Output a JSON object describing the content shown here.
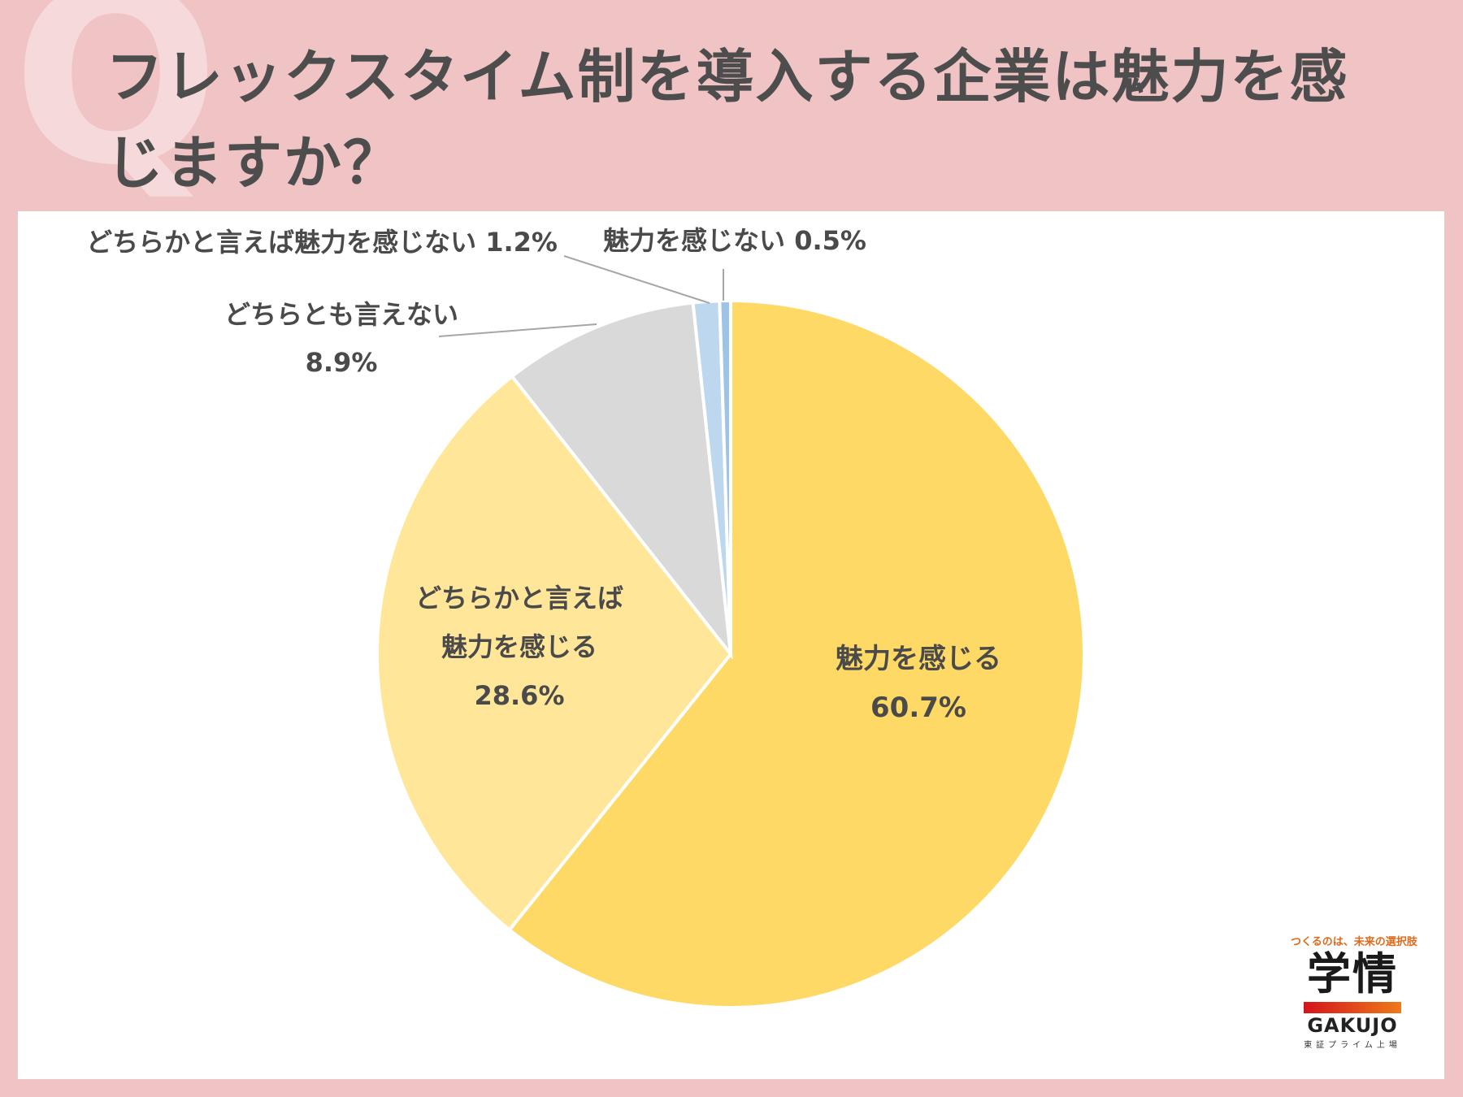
{
  "header": {
    "q_mark": "Q",
    "title": "フレックスタイム制を導入する企業は魅力を感じますか？"
  },
  "chart_data": {
    "type": "pie",
    "title": "フレックスタイム制を導入する企業は魅力を感じますか？",
    "slices": [
      {
        "label": "魅力を感じる",
        "value": 60.7,
        "value_label": "60.7%",
        "color": "#ffd966"
      },
      {
        "label": "どちらかと言えば魅力を感じる",
        "value": 28.6,
        "value_label": "28.6%",
        "color": "#ffe699"
      },
      {
        "label": "どちらとも言えない",
        "value": 8.9,
        "value_label": "8.9%",
        "color": "#d9d9d9"
      },
      {
        "label": "どちらかと言えば魅力を感じない",
        "value": 1.2,
        "value_label": "1.2%",
        "color": "#bdd7ee"
      },
      {
        "label": "魅力を感じない",
        "value": 0.5,
        "value_label": "0.5%",
        "color": "#9dc3e6"
      }
    ]
  },
  "logo": {
    "tagline": "つくるのは、未来の選択肢",
    "kanji": "学情",
    "word": "GAKUJO",
    "sub": "東証プライム上場"
  }
}
